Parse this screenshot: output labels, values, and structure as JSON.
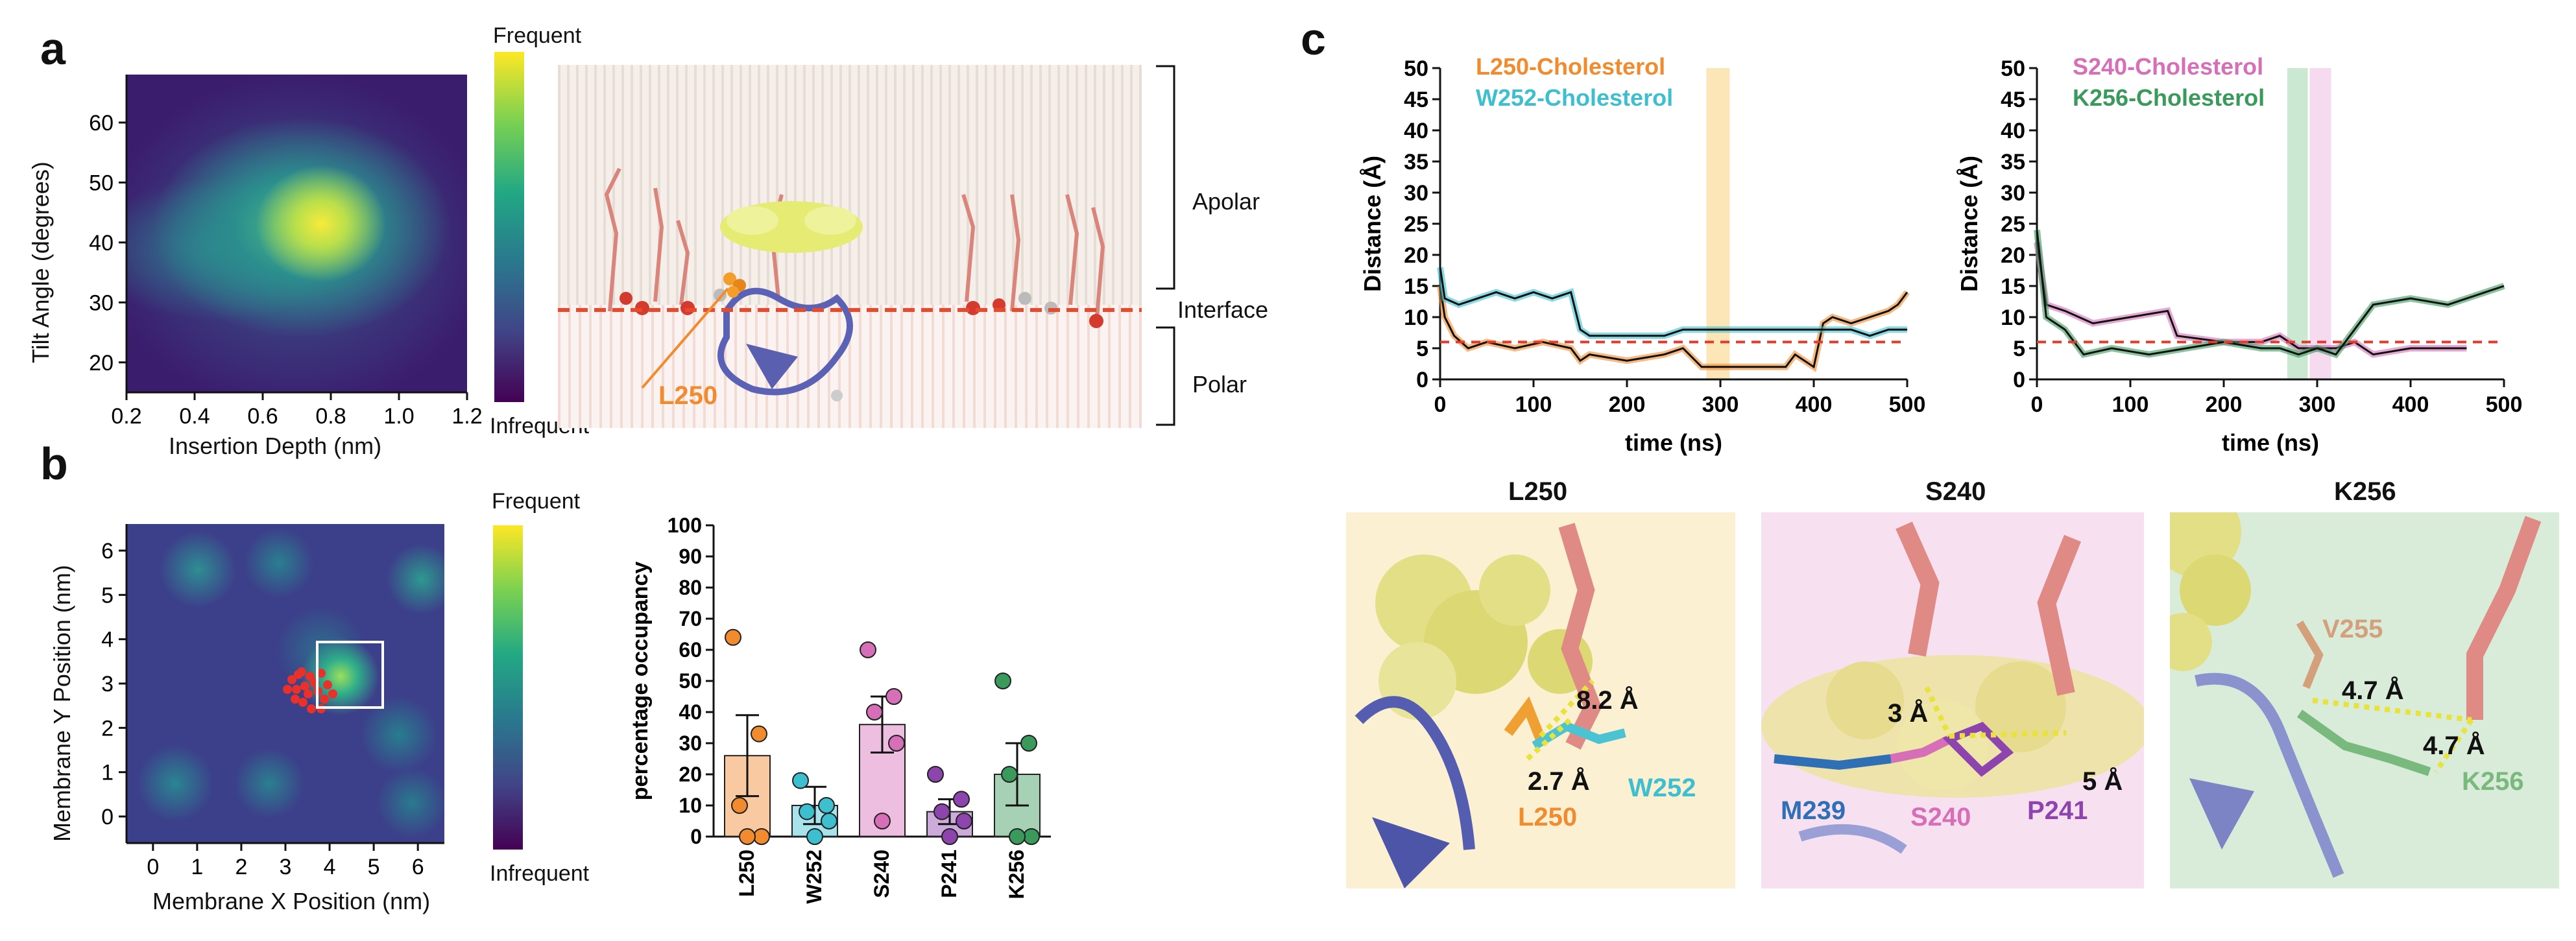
{
  "panel_labels": {
    "a": "a",
    "b": "b",
    "c": "c"
  },
  "colors": {
    "l250": "#f28a2e",
    "w252": "#3dbfd0",
    "s240": "#d66fb8",
    "p241": "#8e44ad",
    "k256": "#3a9a5b",
    "threshold": "#e23b2b",
    "m239": "#2f6fb5",
    "v255": "#d4a07c"
  },
  "panel_a": {
    "heatmap": {
      "xlabel": "Insertion Depth (nm)",
      "ylabel": "Tilt Angle (degrees)",
      "xticks": [
        "0.2",
        "0.4",
        "0.6",
        "0.8",
        "1.0",
        "1.2"
      ],
      "yticks": [
        "20",
        "30",
        "40",
        "50",
        "60"
      ]
    },
    "colorbar": {
      "top": "Frequent",
      "bottom": "Infrequent"
    },
    "membrane": {
      "apolar": "Apolar",
      "interface": "Interface",
      "polar": "Polar",
      "residue": "L250"
    }
  },
  "panel_b": {
    "heatmap": {
      "xlabel": "Membrane X Position (nm)",
      "ylabel": "Membrane Y Position (nm)",
      "xticks": [
        "0",
        "1",
        "2",
        "3",
        "4",
        "5",
        "6"
      ],
      "yticks": [
        "0",
        "1",
        "2",
        "3",
        "4",
        "5",
        "6"
      ]
    },
    "colorbar": {
      "top": "Frequent",
      "bottom": "Infrequent"
    }
  },
  "chart_data": [
    {
      "type": "bar",
      "title": "",
      "ylabel": "percentage occupancy",
      "ylim": [
        0,
        100
      ],
      "yticks": [
        "0",
        "10",
        "20",
        "30",
        "40",
        "50",
        "60",
        "70",
        "80",
        "90",
        "100"
      ],
      "categories": [
        "L250",
        "W252",
        "S240",
        "P241",
        "K256"
      ],
      "values": [
        26,
        10,
        36,
        8,
        20
      ],
      "sem": [
        13,
        6,
        9,
        4,
        10
      ],
      "points": [
        [
          64,
          33,
          10,
          0,
          0
        ],
        [
          18,
          10,
          8,
          5,
          0
        ],
        [
          60,
          45,
          40,
          30,
          5
        ],
        [
          20,
          12,
          8,
          5,
          0
        ],
        [
          50,
          30,
          20,
          0,
          0
        ]
      ]
    },
    {
      "type": "line",
      "xlabel": "time (ns)",
      "ylabel": "Distance (Å)",
      "xlim": [
        0,
        500
      ],
      "ylim": [
        0,
        50
      ],
      "xticks": [
        "0",
        "100",
        "200",
        "300",
        "400",
        "500"
      ],
      "yticks": [
        "0",
        "5",
        "10",
        "15",
        "20",
        "25",
        "30",
        "35",
        "40",
        "45",
        "50"
      ],
      "threshold": 6,
      "highlight": [
        [
          285,
          310
        ]
      ],
      "series": [
        {
          "name": "L250-Cholesterol",
          "x": [
            0,
            5,
            15,
            30,
            50,
            80,
            110,
            140,
            150,
            160,
            200,
            240,
            260,
            280,
            290,
            300,
            330,
            370,
            380,
            400,
            410,
            420,
            440,
            460,
            480,
            490,
            500
          ],
          "y": [
            15,
            10,
            7,
            5,
            6,
            5,
            6,
            5,
            3,
            4,
            3,
            4,
            5,
            2,
            2,
            2,
            2,
            2,
            4,
            2,
            9,
            10,
            9,
            10,
            11,
            12,
            14
          ]
        },
        {
          "name": "W252-Cholesterol",
          "x": [
            0,
            5,
            20,
            40,
            60,
            80,
            100,
            120,
            140,
            150,
            160,
            200,
            240,
            260,
            270,
            300,
            330,
            360,
            390,
            420,
            440,
            460,
            480,
            490,
            500
          ],
          "y": [
            18,
            13,
            12,
            13,
            14,
            13,
            14,
            13,
            14,
            8,
            7,
            7,
            7,
            8,
            8,
            8,
            8,
            8,
            8,
            8,
            8,
            7,
            8,
            8,
            8
          ]
        }
      ]
    },
    {
      "type": "line",
      "xlabel": "time (ns)",
      "ylabel": "Distance (Å)",
      "xlim": [
        0,
        500
      ],
      "ylim": [
        0,
        50
      ],
      "xticks": [
        "0",
        "100",
        "200",
        "300",
        "400",
        "500"
      ],
      "yticks": [
        "0",
        "5",
        "10",
        "15",
        "20",
        "25",
        "30",
        "35",
        "40",
        "45",
        "50"
      ],
      "threshold": 6,
      "highlight": [
        [
          268,
          290
        ],
        [
          292,
          315
        ]
      ],
      "series": [
        {
          "name": "S240-Cholesterol",
          "x": [
            0,
            10,
            30,
            60,
            100,
            140,
            150,
            200,
            240,
            260,
            280,
            300,
            320,
            340,
            360,
            400,
            440,
            460
          ],
          "y": [
            22,
            12,
            11,
            9,
            10,
            11,
            7,
            6,
            6,
            7,
            5,
            5,
            5,
            6,
            4,
            5,
            5,
            5
          ]
        },
        {
          "name": "K256-Cholesterol",
          "x": [
            0,
            10,
            30,
            50,
            80,
            120,
            160,
            200,
            240,
            260,
            280,
            300,
            320,
            340,
            360,
            400,
            440,
            480,
            500
          ],
          "y": [
            24,
            10,
            8,
            4,
            5,
            4,
            5,
            6,
            5,
            5,
            4,
            5,
            4,
            8,
            12,
            13,
            12,
            14,
            15
          ]
        }
      ]
    }
  ],
  "panel_c_bottom": {
    "l250": {
      "title": "L250",
      "dist1": "8.2 Å",
      "dist2": "2.7 Å",
      "res1": "W252",
      "res2": "L250"
    },
    "s240": {
      "title": "S240",
      "dist1": "3 Å",
      "dist2": "5 Å",
      "res1": "M239",
      "res2": "S240",
      "res3": "P241"
    },
    "k256": {
      "title": "K256",
      "dist1": "4.7 Å",
      "dist2": "4.7 Å",
      "res1": "V255",
      "res2": "K256"
    }
  }
}
